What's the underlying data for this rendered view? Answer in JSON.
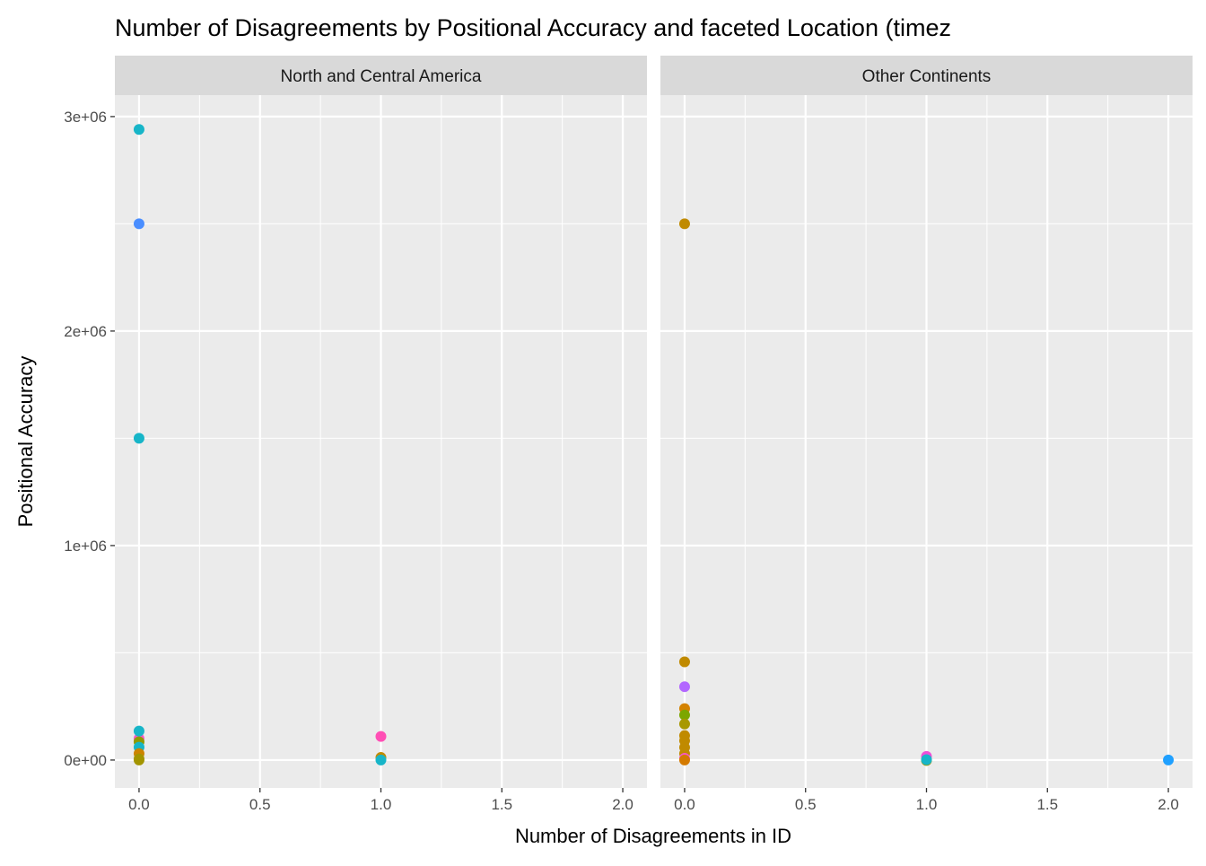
{
  "chart_data": {
    "type": "scatter",
    "title": "Number of Disagreements by Positional Accuracy and faceted Location (timez",
    "xlabel": "Number of Disagreements in ID",
    "ylabel": "Positional Accuracy",
    "xlim": [
      -0.1,
      2.1
    ],
    "ylim": [
      -130000,
      3100000
    ],
    "x_ticks": [
      0,
      0.5,
      1,
      1.5,
      2
    ],
    "x_tick_labels": [
      "0.0",
      "0.5",
      "1.0",
      "1.5",
      "2.0"
    ],
    "y_ticks": [
      0,
      1000000,
      2000000,
      3000000
    ],
    "y_tick_labels": [
      "0e+00",
      "1e+06",
      "2e+06",
      "3e+06"
    ],
    "grid": true,
    "facets": [
      {
        "label": "North and Central America",
        "points": [
          {
            "x": 0,
            "y": 2940000,
            "color": "#17B5C8"
          },
          {
            "x": 0,
            "y": 2500000,
            "color": "#4A8EFF"
          },
          {
            "x": 0,
            "y": 1500000,
            "color": "#17B5C8"
          },
          {
            "x": 0,
            "y": 100000,
            "color": "#F558C8"
          },
          {
            "x": 0,
            "y": 85000,
            "color": "#8F9A00"
          },
          {
            "x": 0,
            "y": 135000,
            "color": "#17B5C8"
          },
          {
            "x": 0,
            "y": 60000,
            "color": "#17B5C8"
          },
          {
            "x": 0,
            "y": 30000,
            "color": "#CC8400"
          },
          {
            "x": 0,
            "y": 5000,
            "color": "#A39500"
          },
          {
            "x": 0,
            "y": 0,
            "color": "#A39500"
          },
          {
            "x": 1,
            "y": 110000,
            "color": "#FF4FB5"
          },
          {
            "x": 1,
            "y": 12000,
            "color": "#C08A00"
          },
          {
            "x": 1,
            "y": 0,
            "color": "#17B5C8"
          }
        ]
      },
      {
        "label": "Other Continents",
        "points": [
          {
            "x": 0,
            "y": 2500000,
            "color": "#C08A00"
          },
          {
            "x": 0,
            "y": 458000,
            "color": "#C08A00"
          },
          {
            "x": 0,
            "y": 342000,
            "color": "#B266FF"
          },
          {
            "x": 0,
            "y": 240000,
            "color": "#D48200"
          },
          {
            "x": 0,
            "y": 210000,
            "color": "#7CA600"
          },
          {
            "x": 0,
            "y": 168000,
            "color": "#A89800"
          },
          {
            "x": 0,
            "y": 114000,
            "color": "#C08A00"
          },
          {
            "x": 0,
            "y": 90000,
            "color": "#C08A00"
          },
          {
            "x": 0,
            "y": 59000,
            "color": "#C08A00"
          },
          {
            "x": 0,
            "y": 30000,
            "color": "#C08A00"
          },
          {
            "x": 0,
            "y": 8000,
            "color": "#F558C8"
          },
          {
            "x": 0,
            "y": 0,
            "color": "#D47A00"
          },
          {
            "x": 1,
            "y": 17000,
            "color": "#F04FD8"
          },
          {
            "x": 1,
            "y": -2000,
            "color": "#A39500"
          },
          {
            "x": 1,
            "y": 2000,
            "color": "#17B5C8"
          },
          {
            "x": 2,
            "y": 0,
            "color": "#1FA0FF"
          }
        ]
      }
    ]
  }
}
